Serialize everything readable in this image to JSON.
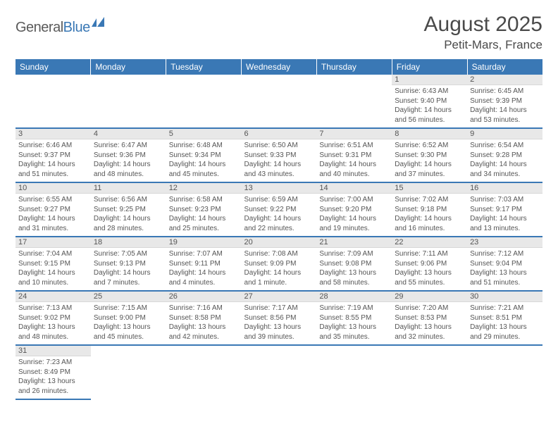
{
  "logo": {
    "part1": "General",
    "part2": "Blue"
  },
  "title": "August 2025",
  "location": "Petit-Mars, France",
  "colors": {
    "header_bg": "#3a78b5",
    "header_text": "#ffffff",
    "daynum_bg": "#e8e8e8",
    "text": "#555555",
    "border": "#3a78b5"
  },
  "day_names": [
    "Sunday",
    "Monday",
    "Tuesday",
    "Wednesday",
    "Thursday",
    "Friday",
    "Saturday"
  ],
  "weeks": [
    [
      null,
      null,
      null,
      null,
      null,
      {
        "n": "1",
        "sr": "Sunrise: 6:43 AM",
        "ss": "Sunset: 9:40 PM",
        "d1": "Daylight: 14 hours",
        "d2": "and 56 minutes."
      },
      {
        "n": "2",
        "sr": "Sunrise: 6:45 AM",
        "ss": "Sunset: 9:39 PM",
        "d1": "Daylight: 14 hours",
        "d2": "and 53 minutes."
      }
    ],
    [
      {
        "n": "3",
        "sr": "Sunrise: 6:46 AM",
        "ss": "Sunset: 9:37 PM",
        "d1": "Daylight: 14 hours",
        "d2": "and 51 minutes."
      },
      {
        "n": "4",
        "sr": "Sunrise: 6:47 AM",
        "ss": "Sunset: 9:36 PM",
        "d1": "Daylight: 14 hours",
        "d2": "and 48 minutes."
      },
      {
        "n": "5",
        "sr": "Sunrise: 6:48 AM",
        "ss": "Sunset: 9:34 PM",
        "d1": "Daylight: 14 hours",
        "d2": "and 45 minutes."
      },
      {
        "n": "6",
        "sr": "Sunrise: 6:50 AM",
        "ss": "Sunset: 9:33 PM",
        "d1": "Daylight: 14 hours",
        "d2": "and 43 minutes."
      },
      {
        "n": "7",
        "sr": "Sunrise: 6:51 AM",
        "ss": "Sunset: 9:31 PM",
        "d1": "Daylight: 14 hours",
        "d2": "and 40 minutes."
      },
      {
        "n": "8",
        "sr": "Sunrise: 6:52 AM",
        "ss": "Sunset: 9:30 PM",
        "d1": "Daylight: 14 hours",
        "d2": "and 37 minutes."
      },
      {
        "n": "9",
        "sr": "Sunrise: 6:54 AM",
        "ss": "Sunset: 9:28 PM",
        "d1": "Daylight: 14 hours",
        "d2": "and 34 minutes."
      }
    ],
    [
      {
        "n": "10",
        "sr": "Sunrise: 6:55 AM",
        "ss": "Sunset: 9:27 PM",
        "d1": "Daylight: 14 hours",
        "d2": "and 31 minutes."
      },
      {
        "n": "11",
        "sr": "Sunrise: 6:56 AM",
        "ss": "Sunset: 9:25 PM",
        "d1": "Daylight: 14 hours",
        "d2": "and 28 minutes."
      },
      {
        "n": "12",
        "sr": "Sunrise: 6:58 AM",
        "ss": "Sunset: 9:23 PM",
        "d1": "Daylight: 14 hours",
        "d2": "and 25 minutes."
      },
      {
        "n": "13",
        "sr": "Sunrise: 6:59 AM",
        "ss": "Sunset: 9:22 PM",
        "d1": "Daylight: 14 hours",
        "d2": "and 22 minutes."
      },
      {
        "n": "14",
        "sr": "Sunrise: 7:00 AM",
        "ss": "Sunset: 9:20 PM",
        "d1": "Daylight: 14 hours",
        "d2": "and 19 minutes."
      },
      {
        "n": "15",
        "sr": "Sunrise: 7:02 AM",
        "ss": "Sunset: 9:18 PM",
        "d1": "Daylight: 14 hours",
        "d2": "and 16 minutes."
      },
      {
        "n": "16",
        "sr": "Sunrise: 7:03 AM",
        "ss": "Sunset: 9:17 PM",
        "d1": "Daylight: 14 hours",
        "d2": "and 13 minutes."
      }
    ],
    [
      {
        "n": "17",
        "sr": "Sunrise: 7:04 AM",
        "ss": "Sunset: 9:15 PM",
        "d1": "Daylight: 14 hours",
        "d2": "and 10 minutes."
      },
      {
        "n": "18",
        "sr": "Sunrise: 7:05 AM",
        "ss": "Sunset: 9:13 PM",
        "d1": "Daylight: 14 hours",
        "d2": "and 7 minutes."
      },
      {
        "n": "19",
        "sr": "Sunrise: 7:07 AM",
        "ss": "Sunset: 9:11 PM",
        "d1": "Daylight: 14 hours",
        "d2": "and 4 minutes."
      },
      {
        "n": "20",
        "sr": "Sunrise: 7:08 AM",
        "ss": "Sunset: 9:09 PM",
        "d1": "Daylight: 14 hours",
        "d2": "and 1 minute."
      },
      {
        "n": "21",
        "sr": "Sunrise: 7:09 AM",
        "ss": "Sunset: 9:08 PM",
        "d1": "Daylight: 13 hours",
        "d2": "and 58 minutes."
      },
      {
        "n": "22",
        "sr": "Sunrise: 7:11 AM",
        "ss": "Sunset: 9:06 PM",
        "d1": "Daylight: 13 hours",
        "d2": "and 55 minutes."
      },
      {
        "n": "23",
        "sr": "Sunrise: 7:12 AM",
        "ss": "Sunset: 9:04 PM",
        "d1": "Daylight: 13 hours",
        "d2": "and 51 minutes."
      }
    ],
    [
      {
        "n": "24",
        "sr": "Sunrise: 7:13 AM",
        "ss": "Sunset: 9:02 PM",
        "d1": "Daylight: 13 hours",
        "d2": "and 48 minutes."
      },
      {
        "n": "25",
        "sr": "Sunrise: 7:15 AM",
        "ss": "Sunset: 9:00 PM",
        "d1": "Daylight: 13 hours",
        "d2": "and 45 minutes."
      },
      {
        "n": "26",
        "sr": "Sunrise: 7:16 AM",
        "ss": "Sunset: 8:58 PM",
        "d1": "Daylight: 13 hours",
        "d2": "and 42 minutes."
      },
      {
        "n": "27",
        "sr": "Sunrise: 7:17 AM",
        "ss": "Sunset: 8:56 PM",
        "d1": "Daylight: 13 hours",
        "d2": "and 39 minutes."
      },
      {
        "n": "28",
        "sr": "Sunrise: 7:19 AM",
        "ss": "Sunset: 8:55 PM",
        "d1": "Daylight: 13 hours",
        "d2": "and 35 minutes."
      },
      {
        "n": "29",
        "sr": "Sunrise: 7:20 AM",
        "ss": "Sunset: 8:53 PM",
        "d1": "Daylight: 13 hours",
        "d2": "and 32 minutes."
      },
      {
        "n": "30",
        "sr": "Sunrise: 7:21 AM",
        "ss": "Sunset: 8:51 PM",
        "d1": "Daylight: 13 hours",
        "d2": "and 29 minutes."
      }
    ],
    [
      {
        "n": "31",
        "sr": "Sunrise: 7:23 AM",
        "ss": "Sunset: 8:49 PM",
        "d1": "Daylight: 13 hours",
        "d2": "and 26 minutes."
      },
      null,
      null,
      null,
      null,
      null,
      null
    ]
  ]
}
